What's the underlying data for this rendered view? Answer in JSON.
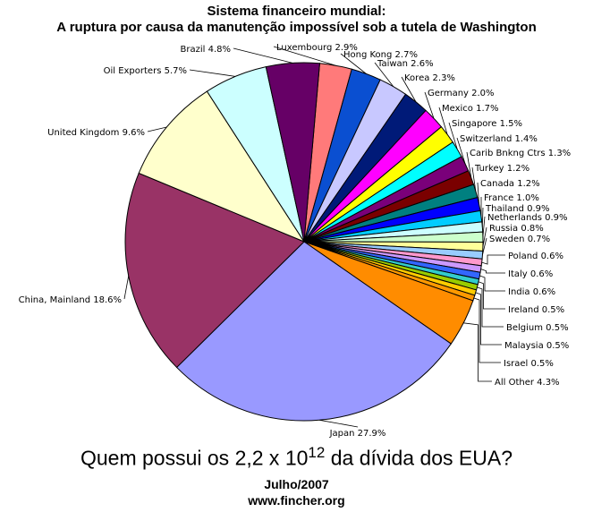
{
  "title": "Sistema financeiro mundial:",
  "subtitle": "A ruptura por causa da manutenção impossível sob a tutela de Washington",
  "question": {
    "before": "Quem possui os 2,2 x 10",
    "exponent": "12",
    "after": " da dívida dos EUA?"
  },
  "date": "Julho/2007",
  "source": "www.fincher.org",
  "chart_data": {
    "type": "pie",
    "unit": "%",
    "slices": [
      {
        "label": "Luxembourg 2.9%",
        "name": "Luxembourg",
        "value": 2.9,
        "color": "#ff7a7a"
      },
      {
        "label": "Hong Kong 2.7%",
        "name": "Hong Kong",
        "value": 2.7,
        "color": "#0a4fd1"
      },
      {
        "label": "Taiwan 2.6%",
        "name": "Taiwan",
        "value": 2.6,
        "color": "#c8c8ff"
      },
      {
        "label": "Korea 2.3%",
        "name": "Korea",
        "value": 2.3,
        "color": "#001a78"
      },
      {
        "label": "Germany 2.0%",
        "name": "Germany",
        "value": 2.0,
        "color": "#ff00ff"
      },
      {
        "label": "Mexico 1.7%",
        "name": "Mexico",
        "value": 1.7,
        "color": "#ffff00"
      },
      {
        "label": "Singapore 1.5%",
        "name": "Singapore",
        "value": 1.5,
        "color": "#00ffff"
      },
      {
        "label": "Switzerland 1.4%",
        "name": "Switzerland",
        "value": 1.4,
        "color": "#7a007a"
      },
      {
        "label": "Carib Bnkng Ctrs 1.3%",
        "name": "Carib Bnkng Ctrs",
        "value": 1.3,
        "color": "#7a0000"
      },
      {
        "label": "Turkey 1.2%",
        "name": "Turkey",
        "value": 1.2,
        "color": "#008080"
      },
      {
        "label": "Canada 1.2%",
        "name": "Canada",
        "value": 1.2,
        "color": "#0000ff"
      },
      {
        "label": "France 1.0%",
        "name": "France",
        "value": 1.0,
        "color": "#00ccff"
      },
      {
        "label": "Thailand 0.9%",
        "name": "Thailand",
        "value": 0.9,
        "color": "#ccffff"
      },
      {
        "label": "Netherlands 0.9%",
        "name": "Netherlands",
        "value": 0.9,
        "color": "#ccffcc"
      },
      {
        "label": "Russia 0.8%",
        "name": "Russia",
        "value": 0.8,
        "color": "#ffff99"
      },
      {
        "label": "Sweden 0.7%",
        "name": "Sweden",
        "value": 0.7,
        "color": "#99ccff"
      },
      {
        "label": "Poland 0.6%",
        "name": "Poland",
        "value": 0.6,
        "color": "#ff99cc"
      },
      {
        "label": "Italy 0.6%",
        "name": "Italy",
        "value": 0.6,
        "color": "#cc99ff"
      },
      {
        "label": "India 0.6%",
        "name": "India",
        "value": 0.6,
        "color": "#3366ff"
      },
      {
        "label": "Ireland 0.5%",
        "name": "Ireland",
        "value": 0.5,
        "color": "#33cccc"
      },
      {
        "label": "Belgium 0.5%",
        "name": "Belgium",
        "value": 0.5,
        "color": "#99cc00"
      },
      {
        "label": "Malaysia 0.5%",
        "name": "Malaysia",
        "value": 0.5,
        "color": "#ffcc00"
      },
      {
        "label": "Israel 0.5%",
        "name": "Israel",
        "value": 0.5,
        "color": "#ff9900"
      },
      {
        "label": "All Other 4.3%",
        "name": "All Other",
        "value": 4.3,
        "color": "#ff8c00"
      },
      {
        "label": "Japan 27.9%",
        "name": "Japan",
        "value": 27.9,
        "color": "#9999ff"
      },
      {
        "label": "China, Mainland 18.6%",
        "name": "China, Mainland",
        "value": 18.6,
        "color": "#993366"
      },
      {
        "label": "United Kingdom 9.6%",
        "name": "United Kingdom",
        "value": 9.6,
        "color": "#ffffcc"
      },
      {
        "label": "Oil Exporters 5.7%",
        "name": "Oil Exporters",
        "value": 5.7,
        "color": "#ccffff"
      },
      {
        "label": "Brazil 4.8%",
        "name": "Brazil",
        "value": 4.8,
        "color": "#660066"
      }
    ]
  }
}
